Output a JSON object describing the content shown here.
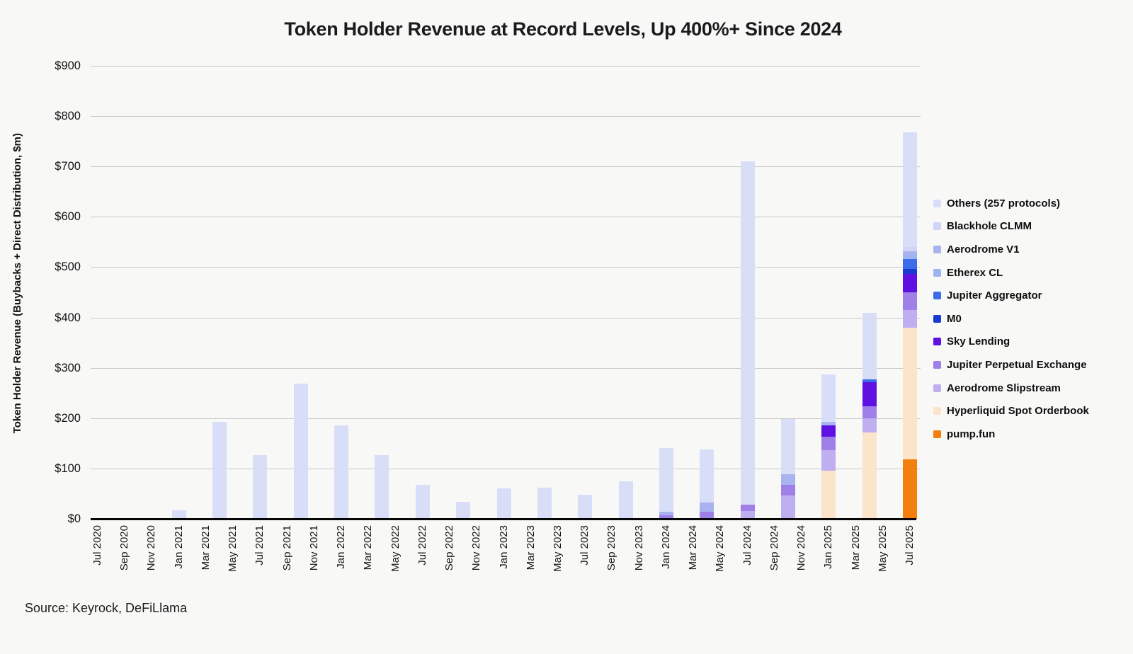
{
  "title": "Token Holder Revenue at Record Levels, Up 400%+ Since 2024",
  "source": "Source: Keyrock, DeFiLlama",
  "chart_data": {
    "type": "bar",
    "stacked": true,
    "title": "Token Holder Revenue at Record Levels, Up 400%+ Since 2024",
    "xlabel": "",
    "ylabel": "Token Holder Revenue (Buybacks + Direct Distribution, $m)",
    "ylim": [
      0,
      900
    ],
    "ytick_step": 100,
    "grid": true,
    "legend_position": "right",
    "y_tick_labels": [
      "$0",
      "$100",
      "$200",
      "$300",
      "$400",
      "$500",
      "$600",
      "$700",
      "$800",
      "$900"
    ],
    "x_tick_labels": [
      "Jul 2020",
      "Sep 2020",
      "Nov 2020",
      "Jan 2021",
      "Mar 2021",
      "May 2021",
      "Jul 2021",
      "Sep 2021",
      "Nov 2021",
      "Jan 2022",
      "Mar 2022",
      "May 2022",
      "Jul 2022",
      "Sep 2022",
      "Nov 2022",
      "Jan 2023",
      "Mar 2023",
      "May 2023",
      "Jul 2023",
      "Sep 2023",
      "Nov 2023",
      "Jan 2024",
      "Mar 2024",
      "May 2024",
      "Jul 2024",
      "Sep 2024",
      "Nov 2024",
      "Jan 2025",
      "Mar 2025",
      "May 2025",
      "Jul 2025"
    ],
    "series_order_bottom_to_top": [
      "pump_fun",
      "hyperliquid",
      "slipstream",
      "perp",
      "sky",
      "m0",
      "jupiter_agg",
      "etherex",
      "aerodrome_v1",
      "blackhole",
      "others"
    ],
    "legend": [
      {
        "id": "others",
        "label": "Others (257 protocols)",
        "color": "#d9def8"
      },
      {
        "id": "blackhole",
        "label": "Blackhole CLMM",
        "color": "#cfd5f6"
      },
      {
        "id": "aerodrome_v1",
        "label": "Aerodrome V1",
        "color": "#a9b3ef"
      },
      {
        "id": "etherex",
        "label": "Etherex CL",
        "color": "#9db4f3"
      },
      {
        "id": "jupiter_agg",
        "label": "Jupiter Aggregator",
        "color": "#3c6ce9"
      },
      {
        "id": "m0",
        "label": "M0",
        "color": "#1b3ad2"
      },
      {
        "id": "sky",
        "label": "Sky Lending",
        "color": "#5e11e1"
      },
      {
        "id": "perp",
        "label": "Jupiter Perpetual Exchange",
        "color": "#9f7fe8"
      },
      {
        "id": "slipstream",
        "label": "Aerodrome Slipstream",
        "color": "#c0aff0"
      },
      {
        "id": "hyperliquid",
        "label": "Hyperliquid Spot Orderbook",
        "color": "#fbe4ca"
      },
      {
        "id": "pump_fun",
        "label": "pump.fun",
        "color": "#f57f0d"
      }
    ],
    "bars": [
      {
        "x": "Jul 2020",
        "total": 0,
        "segments": {}
      },
      {
        "x": "Oct 2020",
        "total": 0,
        "segments": {}
      },
      {
        "x": "Jan 2021",
        "total": 17,
        "segments": {
          "others": 17
        }
      },
      {
        "x": "Apr 2021",
        "total": 192,
        "segments": {
          "others": 192
        }
      },
      {
        "x": "Jul 2021",
        "total": 127,
        "segments": {
          "others": 127
        }
      },
      {
        "x": "Oct 2021",
        "total": 268,
        "segments": {
          "others": 268
        }
      },
      {
        "x": "Jan 2022",
        "total": 185,
        "segments": {
          "others": 185
        }
      },
      {
        "x": "Apr 2022",
        "total": 127,
        "segments": {
          "others": 127
        }
      },
      {
        "x": "Jul 2022",
        "total": 67,
        "segments": {
          "others": 67
        }
      },
      {
        "x": "Oct 2022",
        "total": 34,
        "segments": {
          "others": 34
        }
      },
      {
        "x": "Jan 2023",
        "total": 60,
        "segments": {
          "others": 60
        }
      },
      {
        "x": "Apr 2023",
        "total": 62,
        "segments": {
          "others": 62
        }
      },
      {
        "x": "Jul 2023",
        "total": 48,
        "segments": {
          "others": 48
        }
      },
      {
        "x": "Oct 2023",
        "total": 74,
        "segments": {
          "others": 74
        }
      },
      {
        "x": "Jan 2024",
        "total": 140,
        "segments": {
          "perp": 7,
          "aerodrome_v1": 7,
          "others": 126
        }
      },
      {
        "x": "Apr 2024",
        "total": 138,
        "segments": {
          "perp": 14,
          "aerodrome_v1": 19,
          "others": 105
        }
      },
      {
        "x": "Jul 2024",
        "total": 710,
        "segments": {
          "slipstream": 15,
          "perp": 13,
          "others": 682
        }
      },
      {
        "x": "Oct 2024",
        "total": 198,
        "segments": {
          "slipstream": 47,
          "perp": 21,
          "aerodrome_v1": 20,
          "others": 110
        }
      },
      {
        "x": "Jan 2025",
        "total": 287,
        "segments": {
          "hyperliquid": 95,
          "slipstream": 42,
          "perp": 26,
          "sky": 23,
          "aerodrome_v1": 7,
          "others": 94
        }
      },
      {
        "x": "Apr 2025",
        "total": 409,
        "segments": {
          "hyperliquid": 172,
          "slipstream": 28,
          "perp": 24,
          "sky": 47,
          "jupiter_agg": 6,
          "others": 132
        }
      },
      {
        "x": "Jul 2025",
        "total": 768,
        "segments": {
          "pump_fun": 118,
          "hyperliquid": 262,
          "slipstream": 35,
          "perp": 35,
          "sky": 36,
          "m0": 11,
          "jupiter_agg": 19,
          "etherex": 8,
          "aerodrome_v1": 8,
          "blackhole": 8,
          "others": 228
        }
      }
    ]
  }
}
